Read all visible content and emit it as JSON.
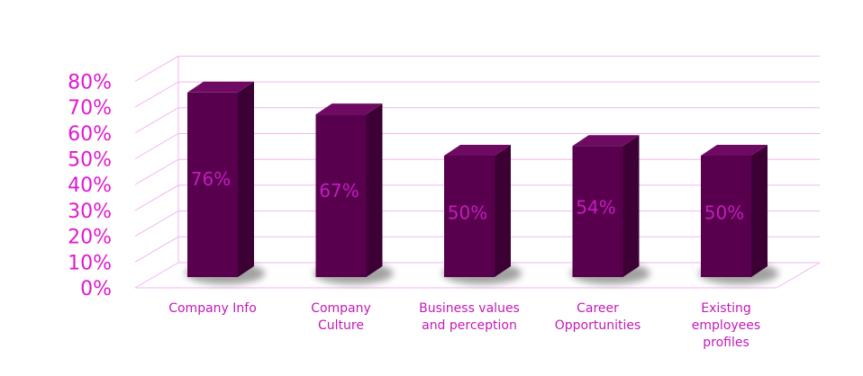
{
  "chart_data": {
    "type": "bar",
    "categories": [
      [
        "Company Info"
      ],
      [
        "Company",
        "Culture"
      ],
      [
        "Business values",
        "and perception"
      ],
      [
        "Career",
        "Opportunities"
      ],
      [
        "Existing",
        "employees",
        "profiles"
      ]
    ],
    "values": [
      76,
      67,
      50,
      54,
      50
    ],
    "data_labels": [
      "76%",
      "67%",
      "50%",
      "54%",
      "50%"
    ],
    "ylim": [
      0,
      80
    ],
    "yticks": [
      "0%",
      "10%",
      "20%",
      "30%",
      "40%",
      "50%",
      "60%",
      "70%",
      "80%"
    ],
    "grid": true,
    "legend": "none",
    "title": "",
    "xlabel": "",
    "ylabel": "",
    "colors": {
      "bar_front": "#58004e",
      "bar_side": "#3c0035",
      "bar_top": "#6e0a62",
      "tick_text": "#e01ad0",
      "category_text": "#c21ab8",
      "data_label_text": "#c41cc0",
      "grid": "#f2b6f0"
    }
  }
}
